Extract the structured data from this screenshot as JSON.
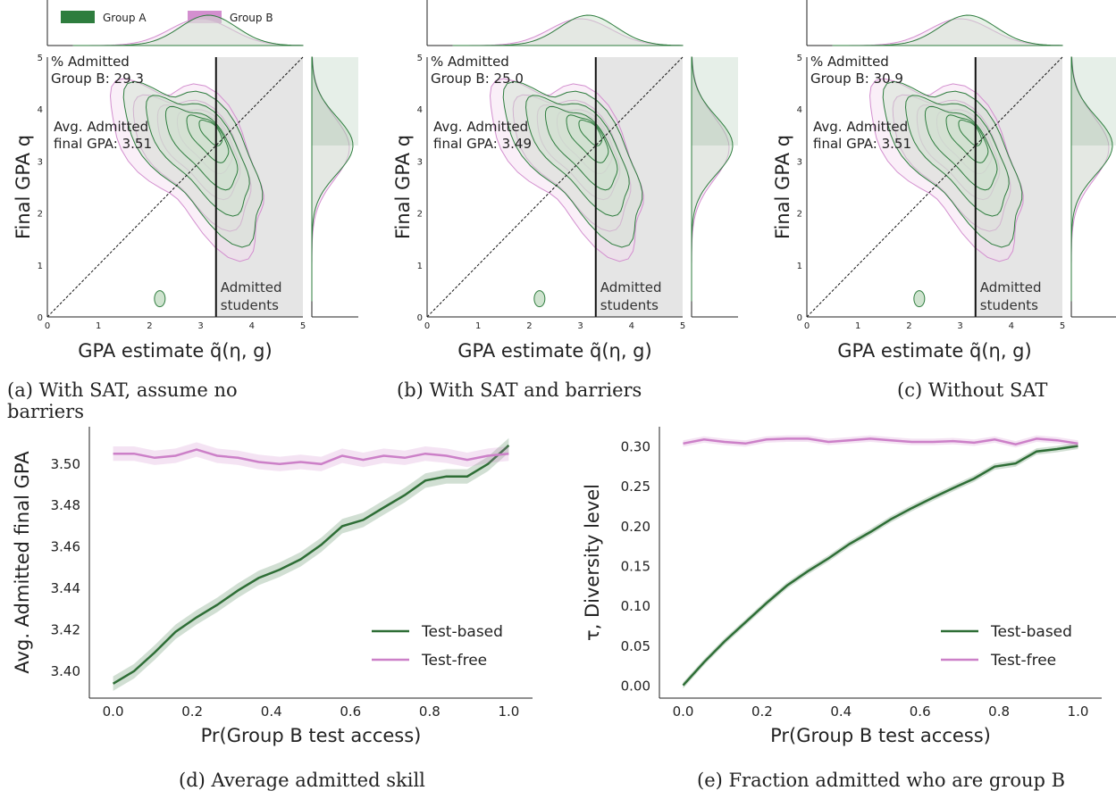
{
  "legend_top": {
    "items": [
      {
        "label": "Group A",
        "color": "#2e7d3e"
      },
      {
        "label": "Group B",
        "color": "#d38fcf"
      }
    ]
  },
  "colors": {
    "group_a": "#2e7d3e",
    "group_a_fill": "#cfe3cf",
    "group_b": "#d38fcf",
    "group_b_fill": "#f3dcef",
    "admitted_region": "#e5e5e5"
  },
  "panels": [
    {
      "caption": "(a) With SAT, assume no barriers",
      "pct_title": "% Admitted",
      "pct_value": "Group B: 29.3",
      "gpa_line1": "Avg. Admitted",
      "gpa_line2": "final GPA: 3.51",
      "region_line1": "Admitted",
      "region_line2": "students",
      "xlabel": "GPA estimate q̃(η, g)",
      "ylabel": "Final GPA q",
      "ticks": [
        "0",
        "1",
        "2",
        "3",
        "4",
        "5"
      ],
      "threshold": 3.3
    },
    {
      "caption": "(b) With SAT and barriers",
      "pct_title": "% Admitted",
      "pct_value": "Group B: 25.0",
      "gpa_line1": "Avg. Admitted",
      "gpa_line2": "final GPA: 3.49",
      "region_line1": "Admitted",
      "region_line2": "students",
      "xlabel": "GPA estimate q̃(η, g)",
      "ylabel": "Final GPA q",
      "ticks": [
        "0",
        "1",
        "2",
        "3",
        "4",
        "5"
      ],
      "threshold": 3.3
    },
    {
      "caption": "(c) Without SAT",
      "pct_title": "% Admitted",
      "pct_value": "Group B: 30.9",
      "gpa_line1": "Avg. Admitted",
      "gpa_line2": "final GPA: 3.51",
      "region_line1": "Admitted",
      "region_line2": "students",
      "xlabel": "GPA estimate q̃(η, g)",
      "ylabel": "Final GPA q",
      "ticks": [
        "0",
        "1",
        "2",
        "3",
        "4",
        "5"
      ],
      "threshold": 3.3
    }
  ],
  "chart_data": [
    {
      "type": "line",
      "caption": "(d) Average admitted skill",
      "xlabel": "Pr(Group B test access)",
      "ylabel": "Avg. Admitted final GPA",
      "xlim": [
        -0.06,
        1.06
      ],
      "ylim": [
        3.387,
        3.518
      ],
      "xticks": [
        0.0,
        0.2,
        0.4,
        0.6,
        0.8,
        1.0
      ],
      "yticks": [
        3.4,
        3.42,
        3.44,
        3.46,
        3.48,
        3.5
      ],
      "legend_position": "lower-right",
      "x": [
        0.0,
        0.053,
        0.105,
        0.158,
        0.211,
        0.263,
        0.316,
        0.368,
        0.421,
        0.474,
        0.526,
        0.579,
        0.632,
        0.684,
        0.737,
        0.789,
        0.842,
        0.895,
        0.947,
        1.0
      ],
      "series": [
        {
          "name": "Test-based",
          "color": "#2e6e36",
          "values": [
            3.394,
            3.4,
            3.409,
            3.419,
            3.426,
            3.432,
            3.439,
            3.445,
            3.449,
            3.454,
            3.461,
            3.47,
            3.473,
            3.479,
            3.485,
            3.492,
            3.494,
            3.494,
            3.5,
            3.509
          ]
        },
        {
          "name": "Test-free",
          "color": "#cc80c8",
          "values": [
            3.505,
            3.505,
            3.503,
            3.504,
            3.507,
            3.504,
            3.503,
            3.501,
            3.5,
            3.501,
            3.5,
            3.504,
            3.502,
            3.504,
            3.503,
            3.505,
            3.504,
            3.502,
            3.504,
            3.505
          ]
        }
      ]
    },
    {
      "type": "line",
      "caption": "(e) Fraction admitted who are group B",
      "xlabel": "Pr(Group B test access)",
      "ylabel": "τ, Diversity level",
      "xlim": [
        -0.06,
        1.06
      ],
      "ylim": [
        -0.015,
        0.325
      ],
      "xticks": [
        0.0,
        0.2,
        0.4,
        0.6,
        0.8,
        1.0
      ],
      "yticks": [
        0.0,
        0.05,
        0.1,
        0.15,
        0.2,
        0.25,
        0.3
      ],
      "legend_position": "lower-right",
      "x": [
        0.0,
        0.053,
        0.105,
        0.158,
        0.211,
        0.263,
        0.316,
        0.368,
        0.421,
        0.474,
        0.526,
        0.579,
        0.632,
        0.684,
        0.737,
        0.789,
        0.842,
        0.895,
        0.947,
        1.0
      ],
      "series": [
        {
          "name": "Test-based",
          "color": "#2e6e36",
          "values": [
            0.001,
            0.03,
            0.056,
            0.08,
            0.104,
            0.126,
            0.144,
            0.16,
            0.178,
            0.193,
            0.209,
            0.223,
            0.236,
            0.248,
            0.26,
            0.275,
            0.279,
            0.294,
            0.297,
            0.301
          ]
        },
        {
          "name": "Test-free",
          "color": "#cc80c8",
          "values": [
            0.304,
            0.309,
            0.306,
            0.304,
            0.309,
            0.31,
            0.31,
            0.306,
            0.308,
            0.31,
            0.308,
            0.306,
            0.306,
            0.307,
            0.305,
            0.309,
            0.303,
            0.31,
            0.308,
            0.304
          ]
        }
      ]
    }
  ]
}
